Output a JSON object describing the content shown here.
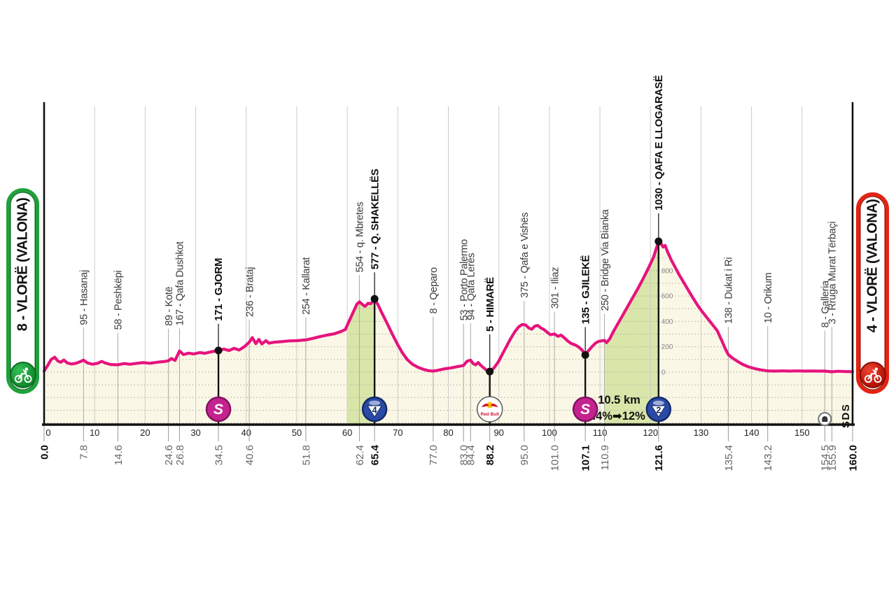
{
  "start_badge": {
    "label": "8 - VLORË (VALONA)",
    "color": "#1fa13a"
  },
  "finish_badge": {
    "label": "4 - VLORË (VALONA)",
    "color": "#e42313"
  },
  "footer": {
    "sds": "SDS"
  },
  "chart_data": {
    "type": "area",
    "x_unit": "km",
    "y_unit": "m",
    "xlim": [
      0,
      160
    ],
    "x_ticks": [
      0,
      10,
      20,
      30,
      40,
      50,
      60,
      70,
      80,
      90,
      100,
      110,
      120,
      130,
      140,
      150
    ],
    "elevation_scale_labels": [
      800,
      600,
      400,
      200,
      0
    ],
    "line_color": "#e6137d",
    "area_color": "#faf7e6",
    "climb_color": "#d9e6aa",
    "grid_color": "#cccccc",
    "climb_note": {
      "line1": "10.5 km",
      "line2": "7.4%➡12%"
    },
    "badges": {
      "sprint_label": "S",
      "cat4_label": "4",
      "cat2_label": "2",
      "redbull_label": "Red Bull"
    },
    "climb_segments": [
      {
        "from_km": 59.9,
        "to_km": 65.4
      },
      {
        "from_km": 111.0,
        "to_km": 121.6
      }
    ],
    "profile": [
      [
        0,
        8
      ],
      [
        0.6,
        45
      ],
      [
        1.4,
        100
      ],
      [
        2.1,
        118
      ],
      [
        2.7,
        88
      ],
      [
        3.3,
        78
      ],
      [
        3.9,
        96
      ],
      [
        4.6,
        72
      ],
      [
        5.4,
        64
      ],
      [
        6.3,
        70
      ],
      [
        7.1,
        82
      ],
      [
        7.8,
        95
      ],
      [
        8.6,
        72
      ],
      [
        9.6,
        62
      ],
      [
        10.6,
        70
      ],
      [
        11.4,
        85
      ],
      [
        12.1,
        72
      ],
      [
        13.2,
        60
      ],
      [
        14.6,
        58
      ],
      [
        15.8,
        68
      ],
      [
        17,
        62
      ],
      [
        18.4,
        70
      ],
      [
        19.6,
        75
      ],
      [
        21,
        70
      ],
      [
        22.4,
        78
      ],
      [
        23.6,
        83
      ],
      [
        24.6,
        89
      ],
      [
        25.2,
        108
      ],
      [
        25.9,
        92
      ],
      [
        26.8,
        167
      ],
      [
        27.6,
        138
      ],
      [
        28.6,
        150
      ],
      [
        29.6,
        143
      ],
      [
        30.8,
        154
      ],
      [
        31.8,
        148
      ],
      [
        33,
        160
      ],
      [
        34.5,
        171
      ],
      [
        35.6,
        182
      ],
      [
        36.6,
        170
      ],
      [
        37.6,
        188
      ],
      [
        38.6,
        174
      ],
      [
        39.6,
        200
      ],
      [
        40.6,
        236
      ],
      [
        41.2,
        272
      ],
      [
        41.9,
        224
      ],
      [
        42.5,
        258
      ],
      [
        43.1,
        222
      ],
      [
        43.9,
        248
      ],
      [
        44.5,
        228
      ],
      [
        45.5,
        236
      ],
      [
        47,
        240
      ],
      [
        48.5,
        246
      ],
      [
        50,
        248
      ],
      [
        51.8,
        254
      ],
      [
        53.2,
        266
      ],
      [
        54.6,
        280
      ],
      [
        56,
        292
      ],
      [
        57.4,
        302
      ],
      [
        58.6,
        318
      ],
      [
        59.6,
        335
      ],
      [
        60.4,
        405
      ],
      [
        61.2,
        475
      ],
      [
        61.9,
        535
      ],
      [
        62.4,
        554
      ],
      [
        62.9,
        536
      ],
      [
        63.5,
        518
      ],
      [
        64.1,
        542
      ],
      [
        64.7,
        540
      ],
      [
        65.4,
        577
      ],
      [
        66.1,
        528
      ],
      [
        66.9,
        462
      ],
      [
        67.9,
        382
      ],
      [
        68.9,
        300
      ],
      [
        69.9,
        222
      ],
      [
        70.9,
        152
      ],
      [
        71.9,
        98
      ],
      [
        72.9,
        62
      ],
      [
        74,
        38
      ],
      [
        75.1,
        22
      ],
      [
        76,
        12
      ],
      [
        77,
        8
      ],
      [
        78.1,
        16
      ],
      [
        79.2,
        26
      ],
      [
        80.3,
        32
      ],
      [
        81.4,
        40
      ],
      [
        82.2,
        46
      ],
      [
        83,
        53
      ],
      [
        83.7,
        86
      ],
      [
        84.4,
        94
      ],
      [
        84.9,
        68
      ],
      [
        85.4,
        58
      ],
      [
        85.9,
        76
      ],
      [
        86.4,
        54
      ],
      [
        87,
        34
      ],
      [
        87.6,
        14
      ],
      [
        88.2,
        5
      ],
      [
        89,
        32
      ],
      [
        89.9,
        82
      ],
      [
        90.7,
        142
      ],
      [
        91.5,
        202
      ],
      [
        92.3,
        262
      ],
      [
        93.1,
        315
      ],
      [
        93.9,
        356
      ],
      [
        94.6,
        375
      ],
      [
        95.3,
        372
      ],
      [
        95.9,
        348
      ],
      [
        96.5,
        338
      ],
      [
        97.1,
        362
      ],
      [
        97.7,
        368
      ],
      [
        98.3,
        348
      ],
      [
        98.9,
        336
      ],
      [
        99.5,
        316
      ],
      [
        100.2,
        295
      ],
      [
        101,
        301
      ],
      [
        101.7,
        282
      ],
      [
        102.3,
        292
      ],
      [
        102.9,
        272
      ],
      [
        103.6,
        246
      ],
      [
        104.3,
        226
      ],
      [
        105.1,
        214
      ],
      [
        105.8,
        198
      ],
      [
        106.5,
        172
      ],
      [
        107.1,
        135
      ],
      [
        107.7,
        168
      ],
      [
        108.4,
        200
      ],
      [
        109.1,
        228
      ],
      [
        109.7,
        242
      ],
      [
        110.3,
        246
      ],
      [
        110.9,
        250
      ],
      [
        111.3,
        232
      ],
      [
        111.9,
        260
      ],
      [
        112.6,
        315
      ],
      [
        113.6,
        385
      ],
      [
        114.6,
        455
      ],
      [
        115.6,
        525
      ],
      [
        116.6,
        595
      ],
      [
        117.6,
        665
      ],
      [
        118.6,
        740
      ],
      [
        119.6,
        820
      ],
      [
        120.6,
        905
      ],
      [
        121.6,
        1030
      ],
      [
        122.2,
        1005
      ],
      [
        122.5,
        985
      ],
      [
        122.9,
        998
      ],
      [
        123.4,
        945
      ],
      [
        124.1,
        885
      ],
      [
        124.9,
        825
      ],
      [
        125.7,
        765
      ],
      [
        126.6,
        705
      ],
      [
        127.5,
        645
      ],
      [
        128.4,
        585
      ],
      [
        129.3,
        528
      ],
      [
        130.2,
        478
      ],
      [
        131.2,
        428
      ],
      [
        132.2,
        378
      ],
      [
        133.2,
        328
      ],
      [
        134.2,
        240
      ],
      [
        134.8,
        185
      ],
      [
        135.4,
        138
      ],
      [
        136.2,
        112
      ],
      [
        137.2,
        86
      ],
      [
        138.2,
        62
      ],
      [
        139.4,
        42
      ],
      [
        140.6,
        28
      ],
      [
        141.8,
        18
      ],
      [
        143.2,
        10
      ],
      [
        144.6,
        8
      ],
      [
        146,
        10
      ],
      [
        147.5,
        8
      ],
      [
        149,
        10
      ],
      [
        150.5,
        8
      ],
      [
        152,
        9
      ],
      [
        153.2,
        8
      ],
      [
        154.5,
        8
      ],
      [
        155.9,
        3
      ],
      [
        157.1,
        7
      ],
      [
        158.5,
        5
      ],
      [
        160,
        4
      ]
    ],
    "waypoints": [
      {
        "km": 0.0,
        "elev": 8,
        "label": "",
        "km_label": "0.0",
        "km_bold": true
      },
      {
        "km": 7.8,
        "elev": 95,
        "label": "95 - Hasanaj",
        "km_label": "7.8"
      },
      {
        "km": 14.6,
        "elev": 58,
        "label": "58 - Peshkëpi",
        "km_label": "14.6"
      },
      {
        "km": 24.6,
        "elev": 89,
        "label": "89 - Kotë",
        "km_label": "24.6"
      },
      {
        "km": 26.8,
        "elev": 167,
        "label": "167 - Qafa Dushkot",
        "km_label": "26.8",
        "gap": 34
      },
      {
        "km": 34.5,
        "elev": 171,
        "label": "171 - GJORM",
        "km_label": "34.5",
        "bold": true,
        "marker": "sprint",
        "gap": 40
      },
      {
        "km": 40.6,
        "elev": 236,
        "label": "236 - Brataj",
        "km_label": "40.6",
        "gap": 34
      },
      {
        "km": 51.8,
        "elev": 254,
        "label": "254 - Kallarat",
        "km_label": "51.8",
        "gap": 34
      },
      {
        "km": 62.4,
        "elev": 554,
        "label": "554 - q. Mbretes",
        "km_label": "62.4",
        "gap": 40
      },
      {
        "km": 65.4,
        "elev": 577,
        "label": "577 - Q. SHAKELLËS",
        "km_label": "65.4",
        "bold": true,
        "marker": "cat4",
        "km_bold": true,
        "gap": 40
      },
      {
        "km": 77.0,
        "elev": 8,
        "label": "8 - Qeparo",
        "km_label": "77.0",
        "gap": 80
      },
      {
        "km": 83.0,
        "elev": 53,
        "label": "53 - Porto Palermo",
        "km_label": "83.0",
        "gap": 62
      },
      {
        "km": 84.4,
        "elev": 94,
        "label": "94 - Qafa Lerës",
        "km_label": "84.4",
        "gap": 55
      },
      {
        "km": 88.2,
        "elev": 5,
        "label": "5 - HIMARË",
        "km_label": "88.2",
        "bold": true,
        "marker": "redbull",
        "km_bold": true,
        "gap": 55
      },
      {
        "km": 95.0,
        "elev": 375,
        "label": "375 - Qafa e Vishës",
        "km_label": "95.0",
        "gap": 36
      },
      {
        "km": 101.0,
        "elev": 301,
        "label": "301 - Iliaz",
        "km_label": "101.0",
        "gap": 34
      },
      {
        "km": 107.1,
        "elev": 135,
        "label": "135 - GJILEKË",
        "km_label": "107.1",
        "bold": true,
        "marker": "sprint",
        "km_bold": true,
        "gap": 42
      },
      {
        "km": 110.9,
        "elev": 250,
        "label": "250 - Bridge Via Bianka",
        "km_label": "110.9",
        "gap": 40
      },
      {
        "km": 121.6,
        "elev": 1030,
        "label": "1030 - QAFA E LLOGARASË",
        "km_label": "121.6",
        "bold": true,
        "marker": "cat2",
        "km_bold": true,
        "gap": 42
      },
      {
        "km": 135.4,
        "elev": 138,
        "label": "138 - Dukat i Ri",
        "km_label": "135.4",
        "gap": 42
      },
      {
        "km": 143.2,
        "elev": 10,
        "label": "10 - Orikum",
        "km_label": "143.2",
        "gap": 66
      },
      {
        "km": 154.5,
        "elev": 8,
        "label": "8 - Galleria",
        "km_label": "154.5",
        "marker": "tunnel",
        "gap": 60
      },
      {
        "km": 155.9,
        "elev": 3,
        "label": "3 - Rruga Murat Tërbaçi",
        "km_label": "155.9",
        "gap": 66
      },
      {
        "km": 160.0,
        "elev": 4,
        "label": "",
        "km_label": "160.0",
        "km_bold": true
      }
    ]
  }
}
